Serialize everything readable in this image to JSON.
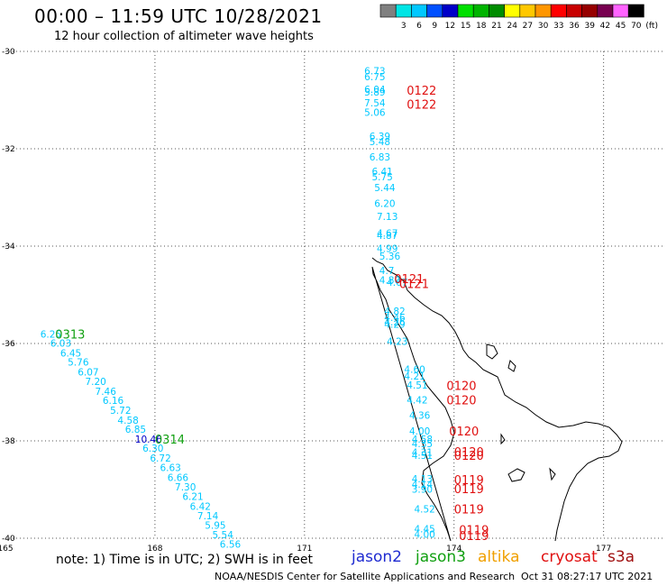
{
  "title": "00:00 – 11:59 UTC 10/28/2021",
  "subtitle": "12 hour collection of altimeter wave heights",
  "note": "note: 1) Time is in UTC; 2) SWH is in feet",
  "credit": "NOAA/NESDIS Center for Satellite Applications and Research",
  "timestamp": "Oct 31 08:27:17 UTC 2021",
  "satellites": [
    {
      "name": "jason2",
      "color": "#1f2bd1"
    },
    {
      "name": "jason3",
      "color": "#12a012"
    },
    {
      "name": "altika",
      "color": "#f0a000"
    },
    {
      "name": "cryosat",
      "color": "#e01010"
    },
    {
      "name": "s3a",
      "color": "#a01010"
    }
  ],
  "legend": {
    "unit": "(ft)",
    "bins": [
      {
        "label": "",
        "color": "#808080"
      },
      {
        "label": "3",
        "color": "#00e5e5"
      },
      {
        "label": "6",
        "color": "#00c8ff"
      },
      {
        "label": "9",
        "color": "#0050ff"
      },
      {
        "label": "12",
        "color": "#0000c8"
      },
      {
        "label": "15",
        "color": "#00e000"
      },
      {
        "label": "18",
        "color": "#00b400"
      },
      {
        "label": "21",
        "color": "#008c00"
      },
      {
        "label": "24",
        "color": "#ffff00"
      },
      {
        "label": "27",
        "color": "#ffc800"
      },
      {
        "label": "30",
        "color": "#ff9600"
      },
      {
        "label": "33",
        "color": "#ff0000"
      },
      {
        "label": "36",
        "color": "#c80000"
      },
      {
        "label": "39",
        "color": "#960000"
      },
      {
        "label": "42",
        "color": "#780050"
      },
      {
        "label": "45",
        "color": "#ff64ff"
      },
      {
        "label": "70",
        "color": "#000000"
      }
    ]
  },
  "chart_data": {
    "type": "scatter",
    "xlim": [
      165,
      178.2
    ],
    "ylim": [
      -40,
      -30
    ],
    "x_ticks": [
      {
        "value": 165,
        "label": "165"
      },
      {
        "value": 168,
        "label": "168"
      },
      {
        "value": 171,
        "label": "171"
      },
      {
        "value": 174,
        "label": "174"
      },
      {
        "value": 177,
        "label": "177"
      }
    ],
    "y_ticks": [
      {
        "value": -30,
        "label": "-30"
      },
      {
        "value": -32,
        "label": "-32"
      },
      {
        "value": -34,
        "label": "-34"
      },
      {
        "value": -36,
        "label": "-36"
      },
      {
        "value": -38,
        "label": "-38"
      },
      {
        "value": -40,
        "label": "-40"
      }
    ],
    "grid": true,
    "swh_points": [
      {
        "lon": 172.2,
        "lat": -30.4,
        "v": "6.73",
        "c": "#00c8ff"
      },
      {
        "lon": 172.2,
        "lat": -30.52,
        "v": "6.75",
        "c": "#00c8ff"
      },
      {
        "lon": 172.2,
        "lat": -30.78,
        "v": "6.04",
        "c": "#00c8ff"
      },
      {
        "lon": 172.2,
        "lat": -30.83,
        "v": "5.89",
        "c": "#00c8ff"
      },
      {
        "lon": 172.2,
        "lat": -31.06,
        "v": "7.54",
        "c": "#00c8ff"
      },
      {
        "lon": 172.2,
        "lat": -31.25,
        "v": "5.06",
        "c": "#00c8ff"
      },
      {
        "lon": 172.3,
        "lat": -31.74,
        "v": "6.39",
        "c": "#00c8ff"
      },
      {
        "lon": 172.3,
        "lat": -31.85,
        "v": "5.48",
        "c": "#00c8ff"
      },
      {
        "lon": 172.3,
        "lat": -32.17,
        "v": "6.83",
        "c": "#00c8ff"
      },
      {
        "lon": 172.35,
        "lat": -32.46,
        "v": "6.41",
        "c": "#00c8ff"
      },
      {
        "lon": 172.35,
        "lat": -32.57,
        "v": "5.75",
        "c": "#00c8ff"
      },
      {
        "lon": 172.4,
        "lat": -32.8,
        "v": "5.44",
        "c": "#00c8ff"
      },
      {
        "lon": 172.4,
        "lat": -33.12,
        "v": "6.20",
        "c": "#00c8ff"
      },
      {
        "lon": 172.45,
        "lat": -33.39,
        "v": "7.13",
        "c": "#00c8ff"
      },
      {
        "lon": 172.45,
        "lat": -33.73,
        "v": "4.67",
        "c": "#00c8ff"
      },
      {
        "lon": 172.45,
        "lat": -33.78,
        "v": "4.87",
        "c": "#00c8ff"
      },
      {
        "lon": 172.45,
        "lat": -34.05,
        "v": "4.99",
        "c": "#00c8ff"
      },
      {
        "lon": 172.5,
        "lat": -34.2,
        "v": "5.36",
        "c": "#00c8ff"
      },
      {
        "lon": 172.5,
        "lat": -34.5,
        "v": "4.7",
        "c": "#00c8ff"
      },
      {
        "lon": 172.5,
        "lat": -34.69,
        "v": "4.80",
        "c": "#00c8ff"
      },
      {
        "lon": 172.65,
        "lat": -34.74,
        "v": "4.67",
        "c": "#00c8ff"
      },
      {
        "lon": 172.6,
        "lat": -35.33,
        "v": "4.82",
        "c": "#00c8ff"
      },
      {
        "lon": 172.6,
        "lat": -35.46,
        "v": "4.46",
        "c": "#00c8ff"
      },
      {
        "lon": 172.6,
        "lat": -35.56,
        "v": "4.26",
        "c": "#00c8ff"
      },
      {
        "lon": 172.6,
        "lat": -35.6,
        "v": "4.29",
        "c": "#00c8ff"
      },
      {
        "lon": 172.65,
        "lat": -35.95,
        "v": "4.23",
        "c": "#00c8ff"
      },
      {
        "lon": 173.0,
        "lat": -36.53,
        "v": "4.60",
        "c": "#00c8ff"
      },
      {
        "lon": 173.0,
        "lat": -36.67,
        "v": "4.21",
        "c": "#00c8ff"
      },
      {
        "lon": 173.05,
        "lat": -36.85,
        "v": "4.51",
        "c": "#00c8ff"
      },
      {
        "lon": 173.05,
        "lat": -37.16,
        "v": "4.42",
        "c": "#00c8ff"
      },
      {
        "lon": 173.1,
        "lat": -37.47,
        "v": "4.36",
        "c": "#00c8ff"
      },
      {
        "lon": 173.1,
        "lat": -37.8,
        "v": "4.00",
        "c": "#00c8ff"
      },
      {
        "lon": 173.15,
        "lat": -37.96,
        "v": "4.58",
        "c": "#00c8ff"
      },
      {
        "lon": 173.15,
        "lat": -38.06,
        "v": "4.35",
        "c": "#00c8ff"
      },
      {
        "lon": 173.15,
        "lat": -38.23,
        "v": "4.31",
        "c": "#00c8ff"
      },
      {
        "lon": 173.15,
        "lat": -38.3,
        "v": "4.51",
        "c": "#00c8ff"
      },
      {
        "lon": 173.15,
        "lat": -38.78,
        "v": "4.13",
        "c": "#00c8ff"
      },
      {
        "lon": 173.15,
        "lat": -38.89,
        "v": "4.14",
        "c": "#00c8ff"
      },
      {
        "lon": 173.15,
        "lat": -38.99,
        "v": "3.90",
        "c": "#00c8ff"
      },
      {
        "lon": 173.2,
        "lat": -39.4,
        "v": "4.52",
        "c": "#00c8ff"
      },
      {
        "lon": 173.2,
        "lat": -39.81,
        "v": "4.45",
        "c": "#00c8ff"
      },
      {
        "lon": 173.2,
        "lat": -39.92,
        "v": "4.00",
        "c": "#00c8ff"
      },
      {
        "lon": 165.7,
        "lat": -35.81,
        "v": "6.25",
        "c": "#00c8ff"
      },
      {
        "lon": 165.9,
        "lat": -35.99,
        "v": "6.03",
        "c": "#00c8ff"
      },
      {
        "lon": 166.1,
        "lat": -36.19,
        "v": "6.45",
        "c": "#00c8ff"
      },
      {
        "lon": 166.25,
        "lat": -36.38,
        "v": "5.76",
        "c": "#00c8ff"
      },
      {
        "lon": 166.45,
        "lat": -36.58,
        "v": "6.07",
        "c": "#00c8ff"
      },
      {
        "lon": 166.6,
        "lat": -36.78,
        "v": "7.20",
        "c": "#00c8ff"
      },
      {
        "lon": 166.8,
        "lat": -36.98,
        "v": "7.46",
        "c": "#00c8ff"
      },
      {
        "lon": 166.95,
        "lat": -37.17,
        "v": "6.16",
        "c": "#00c8ff"
      },
      {
        "lon": 167.1,
        "lat": -37.37,
        "v": "5.72",
        "c": "#00c8ff"
      },
      {
        "lon": 167.25,
        "lat": -37.57,
        "v": "4.58",
        "c": "#00c8ff"
      },
      {
        "lon": 167.4,
        "lat": -37.76,
        "v": "6.85",
        "c": "#00c8ff"
      },
      {
        "lon": 167.6,
        "lat": -37.96,
        "v": "10.46",
        "c": "#0000c8"
      },
      {
        "lon": 167.75,
        "lat": -38.15,
        "v": "6.30",
        "c": "#00c8ff"
      },
      {
        "lon": 167.9,
        "lat": -38.35,
        "v": "6.72",
        "c": "#00c8ff"
      },
      {
        "lon": 168.1,
        "lat": -38.55,
        "v": "6.63",
        "c": "#00c8ff"
      },
      {
        "lon": 168.25,
        "lat": -38.75,
        "v": "6.66",
        "c": "#00c8ff"
      },
      {
        "lon": 168.4,
        "lat": -38.94,
        "v": "7.30",
        "c": "#00c8ff"
      },
      {
        "lon": 168.55,
        "lat": -39.14,
        "v": "6.21",
        "c": "#00c8ff"
      },
      {
        "lon": 168.7,
        "lat": -39.34,
        "v": "6.42",
        "c": "#00c8ff"
      },
      {
        "lon": 168.85,
        "lat": -39.54,
        "v": "7.14",
        "c": "#00c8ff"
      },
      {
        "lon": 169.0,
        "lat": -39.73,
        "v": "5.95",
        "c": "#00c8ff"
      },
      {
        "lon": 169.15,
        "lat": -39.93,
        "v": "5.54",
        "c": "#00c8ff"
      },
      {
        "lon": 169.3,
        "lat": -40.12,
        "v": "6.56",
        "c": "#00c8ff"
      }
    ],
    "time_labels": [
      {
        "lon": 173.05,
        "lat": -30.8,
        "t": "0122",
        "c": "#e01010"
      },
      {
        "lon": 173.05,
        "lat": -31.08,
        "t": "0122",
        "c": "#e01010"
      },
      {
        "lon": 172.8,
        "lat": -34.67,
        "t": "0121",
        "c": "#e01010"
      },
      {
        "lon": 172.9,
        "lat": -34.77,
        "t": "0121",
        "c": "#e01010"
      },
      {
        "lon": 173.85,
        "lat": -36.86,
        "t": "0120",
        "c": "#e01010"
      },
      {
        "lon": 173.85,
        "lat": -37.16,
        "t": "0120",
        "c": "#e01010"
      },
      {
        "lon": 173.9,
        "lat": -37.8,
        "t": "0120",
        "c": "#e01010"
      },
      {
        "lon": 174.0,
        "lat": -38.22,
        "t": "0120",
        "c": "#e01010"
      },
      {
        "lon": 174.0,
        "lat": -38.3,
        "t": "0120",
        "c": "#e01010"
      },
      {
        "lon": 174.0,
        "lat": -38.8,
        "t": "0119",
        "c": "#e01010"
      },
      {
        "lon": 174.0,
        "lat": -38.98,
        "t": "0119",
        "c": "#e01010"
      },
      {
        "lon": 174.0,
        "lat": -39.4,
        "t": "0119",
        "c": "#e01010"
      },
      {
        "lon": 174.1,
        "lat": -39.82,
        "t": "0119",
        "c": "#e01010"
      },
      {
        "lon": 174.1,
        "lat": -39.94,
        "t": "0119",
        "c": "#e01010"
      },
      {
        "lon": 166.0,
        "lat": -35.81,
        "t": "0313",
        "c": "#12a012"
      },
      {
        "lon": 168.0,
        "lat": -37.96,
        "t": "0314",
        "c": "#12a012"
      }
    ]
  }
}
